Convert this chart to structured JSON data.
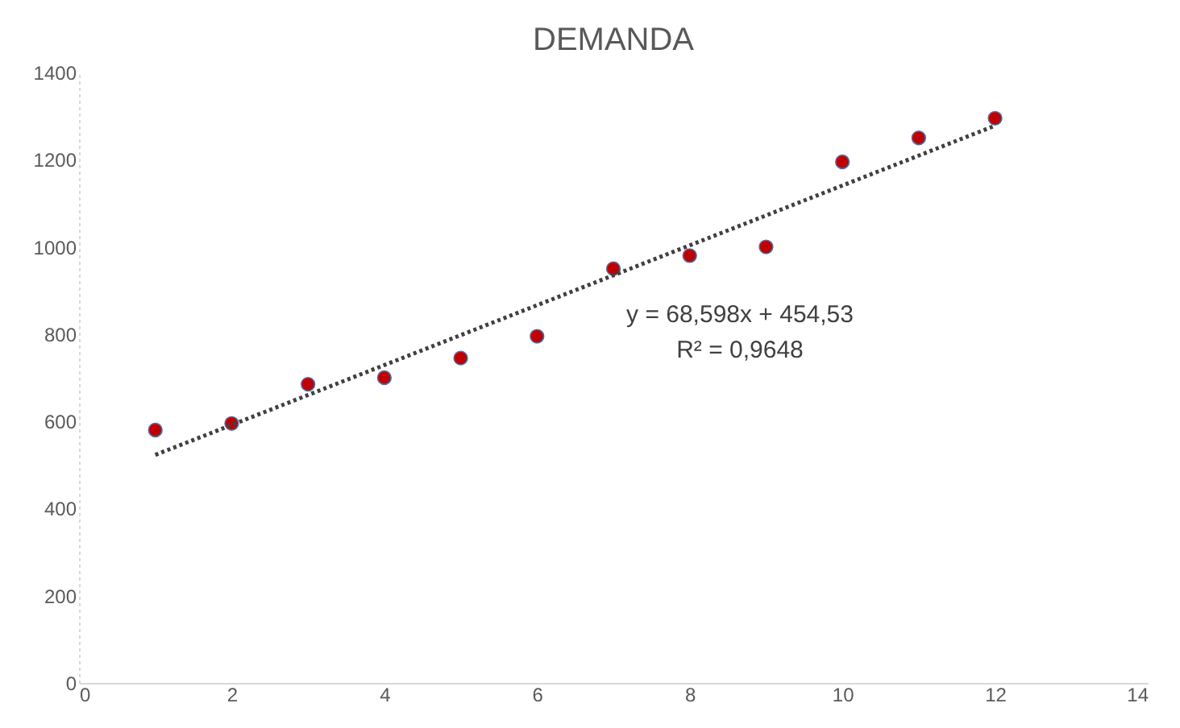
{
  "chart_data": {
    "type": "scatter",
    "title": "DEMANDA",
    "x": [
      1,
      2,
      3,
      4,
      5,
      6,
      7,
      8,
      9,
      10,
      11,
      12
    ],
    "series": [
      {
        "color": "#c00000",
        "marker": "circle",
        "values": [
          580,
          595,
          685,
          700,
          745,
          795,
          950,
          980,
          1000,
          1195,
          1250,
          1295
        ]
      },
      {
        "type": "line",
        "color": "#404040",
        "line_style": "dotted",
        "marker": "none",
        "x": [
          1,
          12
        ],
        "values": [
          523,
          1278
        ]
      }
    ],
    "annotations": [
      "y = 68,598x + 454,53",
      "R² = 0,9648"
    ],
    "xlim": [
      0,
      14
    ],
    "xticks": [
      0,
      2,
      4,
      6,
      8,
      10,
      12,
      14
    ],
    "ylim": [
      0,
      1400
    ],
    "yticks": [
      0,
      200,
      400,
      600,
      800,
      1000,
      1200,
      1400
    ],
    "grid": false
  }
}
